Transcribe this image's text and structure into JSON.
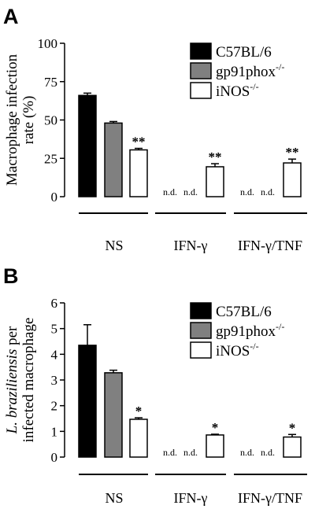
{
  "chart_data": [
    {
      "panel": "A",
      "type": "bar",
      "ylabel_lines": [
        "Macrophage infection",
        "rate (%)"
      ],
      "ylim": [
        0,
        100
      ],
      "yticks": [
        0,
        25,
        50,
        75,
        100
      ],
      "categories": [
        "NS",
        "IFN-γ",
        "IFN-γ/TNF"
      ],
      "series": [
        {
          "name": "C57BL/6",
          "color": "#000000",
          "values": [
            66,
            null,
            null
          ],
          "errors": [
            1.5,
            null,
            null
          ],
          "labels": [
            "",
            "n.d.",
            "n.d."
          ]
        },
        {
          "name": "gp91phox",
          "name_sup": "-/-",
          "color": "#808080",
          "values": [
            48,
            null,
            null
          ],
          "errors": [
            1,
            null,
            null
          ],
          "labels": [
            "",
            "n.d.",
            "n.d."
          ]
        },
        {
          "name": "iNOS",
          "name_sup": "-/-",
          "color": "#ffffff",
          "values": [
            30.5,
            19.5,
            22
          ],
          "errors": [
            1,
            2,
            2.5
          ],
          "labels": [
            "**",
            "**",
            "**"
          ]
        }
      ],
      "legend_position": "top-right",
      "grid": false
    },
    {
      "panel": "B",
      "type": "bar",
      "ylabel_lines": [
        "L. braziliensis per",
        "infected macrophage"
      ],
      "ylabel_italic_word": "L. braziliensis",
      "ylim": [
        0,
        6
      ],
      "yticks": [
        0,
        1,
        2,
        3,
        4,
        5,
        6
      ],
      "categories": [
        "NS",
        "IFN-γ",
        "IFN-γ/TNF"
      ],
      "series": [
        {
          "name": "C57BL/6",
          "color": "#000000",
          "values": [
            4.35,
            null,
            null
          ],
          "errors": [
            0.8,
            null,
            null
          ],
          "labels": [
            "",
            "n.d.",
            "n.d."
          ]
        },
        {
          "name": "gp91phox",
          "name_sup": "-/-",
          "color": "#808080",
          "values": [
            3.28,
            null,
            null
          ],
          "errors": [
            0.1,
            null,
            null
          ],
          "labels": [
            "",
            "n.d.",
            "n.d."
          ]
        },
        {
          "name": "iNOS",
          "name_sup": "-/-",
          "color": "#ffffff",
          "values": [
            1.47,
            0.86,
            0.78
          ],
          "errors": [
            0.06,
            0.03,
            0.1
          ],
          "labels": [
            "*",
            "*",
            "*"
          ]
        }
      ],
      "legend_position": "top-right",
      "grid": false
    }
  ]
}
